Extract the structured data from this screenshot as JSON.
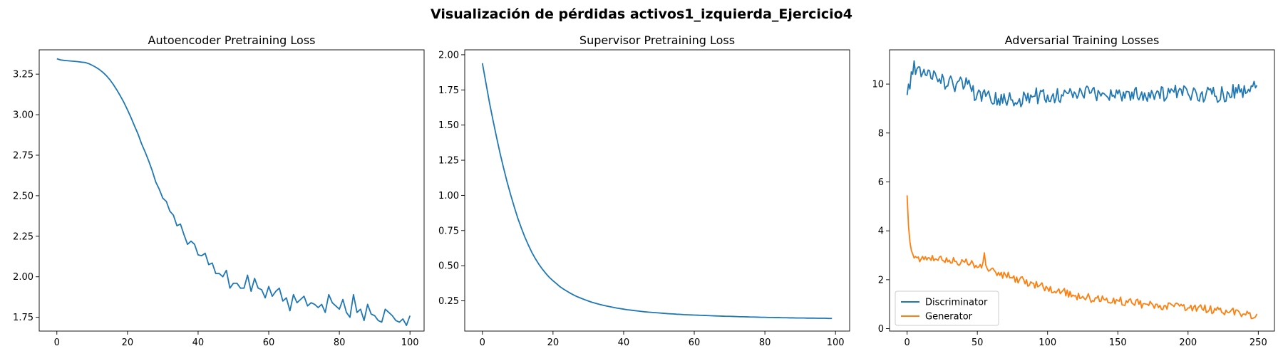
{
  "figure": {
    "title": "Visualización de pérdidas activos1_izquierda_Ejercicio4"
  },
  "chart_data": [
    {
      "type": "line",
      "title": "Autoencoder Pretraining Loss",
      "xlabel": "",
      "ylabel": "",
      "xlim": [
        -5,
        104
      ],
      "ylim": [
        1.665,
        3.4
      ],
      "xticks": [
        0,
        20,
        40,
        60,
        80,
        100
      ],
      "yticks": [
        1.75,
        2.0,
        2.25,
        2.5,
        2.75,
        3.0,
        3.25
      ],
      "ytick_labels": [
        "1.75",
        "2.00",
        "2.25",
        "2.50",
        "2.75",
        "3.00",
        "3.25"
      ],
      "grid": false,
      "series": [
        {
          "color": "#1f77b4",
          "values": [
            3.345,
            3.338,
            3.335,
            3.333,
            3.331,
            3.329,
            3.327,
            3.324,
            3.322,
            3.315,
            3.305,
            3.293,
            3.279,
            3.262,
            3.241,
            3.216,
            3.186,
            3.152,
            3.115,
            3.075,
            3.03,
            2.982,
            2.93,
            2.88,
            2.82,
            2.77,
            2.715,
            2.655,
            2.585,
            2.54,
            2.485,
            2.465,
            2.405,
            2.38,
            2.315,
            2.325,
            2.26,
            2.2,
            2.22,
            2.2,
            2.135,
            2.13,
            2.145,
            2.075,
            2.085,
            2.02,
            2.02,
            2.0,
            2.04,
            1.93,
            1.96,
            1.96,
            1.93,
            1.93,
            2.01,
            1.91,
            1.99,
            1.93,
            1.92,
            1.87,
            1.94,
            1.88,
            1.91,
            1.93,
            1.85,
            1.87,
            1.79,
            1.89,
            1.84,
            1.86,
            1.88,
            1.82,
            1.84,
            1.83,
            1.81,
            1.83,
            1.78,
            1.89,
            1.84,
            1.82,
            1.8,
            1.86,
            1.78,
            1.75,
            1.89,
            1.78,
            1.8,
            1.73,
            1.83,
            1.77,
            1.76,
            1.73,
            1.72,
            1.8,
            1.78,
            1.76,
            1.73,
            1.72,
            1.74,
            1.7,
            1.76
          ]
        }
      ]
    },
    {
      "type": "line",
      "title": "Supervisor Pretraining Loss",
      "xlabel": "",
      "ylabel": "",
      "xlim": [
        -5,
        104
      ],
      "ylim": [
        0.035,
        2.035
      ],
      "xticks": [
        0,
        20,
        40,
        60,
        80,
        100
      ],
      "yticks": [
        0.25,
        0.5,
        0.75,
        1.0,
        1.25,
        1.5,
        1.75,
        2.0
      ],
      "ytick_labels": [
        "0.25",
        "0.50",
        "0.75",
        "1.00",
        "1.25",
        "1.50",
        "1.75",
        "2.00"
      ],
      "grid": false,
      "series": [
        {
          "color": "#1f77b4",
          "values": [
            1.94,
            1.8,
            1.66,
            1.535,
            1.415,
            1.3,
            1.195,
            1.095,
            1.005,
            0.92,
            0.84,
            0.77,
            0.705,
            0.648,
            0.595,
            0.55,
            0.51,
            0.475,
            0.444,
            0.416,
            0.393,
            0.372,
            0.35,
            0.333,
            0.318,
            0.303,
            0.29,
            0.278,
            0.268,
            0.258,
            0.249,
            0.24,
            0.233,
            0.226,
            0.22,
            0.214,
            0.209,
            0.204,
            0.199,
            0.195,
            0.191,
            0.187,
            0.184,
            0.181,
            0.178,
            0.175,
            0.172,
            0.17,
            0.168,
            0.166,
            0.164,
            0.162,
            0.16,
            0.158,
            0.157,
            0.155,
            0.154,
            0.152,
            0.151,
            0.15,
            0.149,
            0.148,
            0.147,
            0.146,
            0.145,
            0.144,
            0.143,
            0.142,
            0.141,
            0.14,
            0.14,
            0.139,
            0.138,
            0.137,
            0.137,
            0.136,
            0.135,
            0.135,
            0.134,
            0.133,
            0.133,
            0.132,
            0.132,
            0.131,
            0.131,
            0.13,
            0.13,
            0.129,
            0.129,
            0.128,
            0.128,
            0.128,
            0.127,
            0.127,
            0.127,
            0.126,
            0.126,
            0.126,
            0.125,
            0.125
          ]
        }
      ]
    },
    {
      "type": "line",
      "title": "Adversarial Training Losses",
      "xlabel": "",
      "ylabel": "",
      "xlim": [
        -12.5,
        261.5
      ],
      "ylim": [
        -0.1,
        11.4
      ],
      "xticks": [
        0,
        50,
        100,
        150,
        200,
        250
      ],
      "yticks": [
        0,
        2,
        4,
        6,
        8,
        10
      ],
      "ytick_labels": [
        "0",
        "2",
        "4",
        "6",
        "8",
        "10"
      ],
      "grid": false,
      "legend": {
        "position": "lower-left",
        "entries": [
          "Discriminator",
          "Generator"
        ]
      },
      "series": [
        {
          "name": "Discriminator",
          "color": "#1f77b4",
          "keypoints": [
            [
              0,
              9.55
            ],
            [
              1,
              10.0
            ],
            [
              2,
              9.8
            ],
            [
              3,
              10.5
            ],
            [
              4,
              10.4
            ],
            [
              5,
              10.95
            ],
            [
              6,
              10.4
            ],
            [
              8,
              10.7
            ],
            [
              10,
              10.3
            ],
            [
              12,
              10.6
            ],
            [
              14,
              10.35
            ],
            [
              16,
              10.55
            ],
            [
              18,
              10.2
            ],
            [
              20,
              10.45
            ],
            [
              22,
              10.1
            ],
            [
              25,
              10.4
            ],
            [
              27,
              9.8
            ],
            [
              30,
              10.2
            ],
            [
              33,
              9.9
            ],
            [
              36,
              10.1
            ],
            [
              40,
              9.8
            ],
            [
              43,
              10.0
            ],
            [
              46,
              9.7
            ],
            [
              50,
              9.6
            ],
            [
              53,
              9.3
            ],
            [
              56,
              9.5
            ],
            [
              60,
              9.25
            ],
            [
              65,
              9.4
            ],
            [
              70,
              9.3
            ],
            [
              75,
              9.35
            ],
            [
              80,
              9.4
            ],
            [
              90,
              9.5
            ],
            [
              100,
              9.55
            ],
            [
              120,
              9.6
            ],
            [
              150,
              9.6
            ],
            [
              175,
              9.6
            ],
            [
              200,
              9.6
            ],
            [
              225,
              9.6
            ],
            [
              249,
              9.95
            ]
          ],
          "noise": 0.35,
          "count": 250
        },
        {
          "name": "Generator",
          "color": "#ff7f0e",
          "keypoints": [
            [
              0,
              5.45
            ],
            [
              1,
              4.2
            ],
            [
              2,
              3.55
            ],
            [
              3,
              3.2
            ],
            [
              4,
              3.05
            ],
            [
              6,
              2.95
            ],
            [
              10,
              2.85
            ],
            [
              15,
              2.9
            ],
            [
              20,
              2.85
            ],
            [
              25,
              2.8
            ],
            [
              30,
              2.8
            ],
            [
              35,
              2.75
            ],
            [
              40,
              2.75
            ],
            [
              45,
              2.65
            ],
            [
              50,
              2.5
            ],
            [
              54,
              2.7
            ],
            [
              55,
              3.1
            ],
            [
              56,
              2.6
            ],
            [
              60,
              2.45
            ],
            [
              65,
              2.3
            ],
            [
              70,
              2.2
            ],
            [
              80,
              2.0
            ],
            [
              90,
              1.85
            ],
            [
              100,
              1.65
            ],
            [
              110,
              1.5
            ],
            [
              120,
              1.35
            ],
            [
              130,
              1.25
            ],
            [
              140,
              1.2
            ],
            [
              150,
              1.15
            ],
            [
              160,
              1.05
            ],
            [
              170,
              1.0
            ],
            [
              180,
              0.95
            ],
            [
              190,
              0.9
            ],
            [
              200,
              0.85
            ],
            [
              210,
              0.8
            ],
            [
              220,
              0.75
            ],
            [
              230,
              0.7
            ],
            [
              240,
              0.6
            ],
            [
              247,
              0.45
            ],
            [
              249,
              0.6
            ]
          ],
          "noise": 0.18,
          "count": 250
        }
      ]
    }
  ]
}
